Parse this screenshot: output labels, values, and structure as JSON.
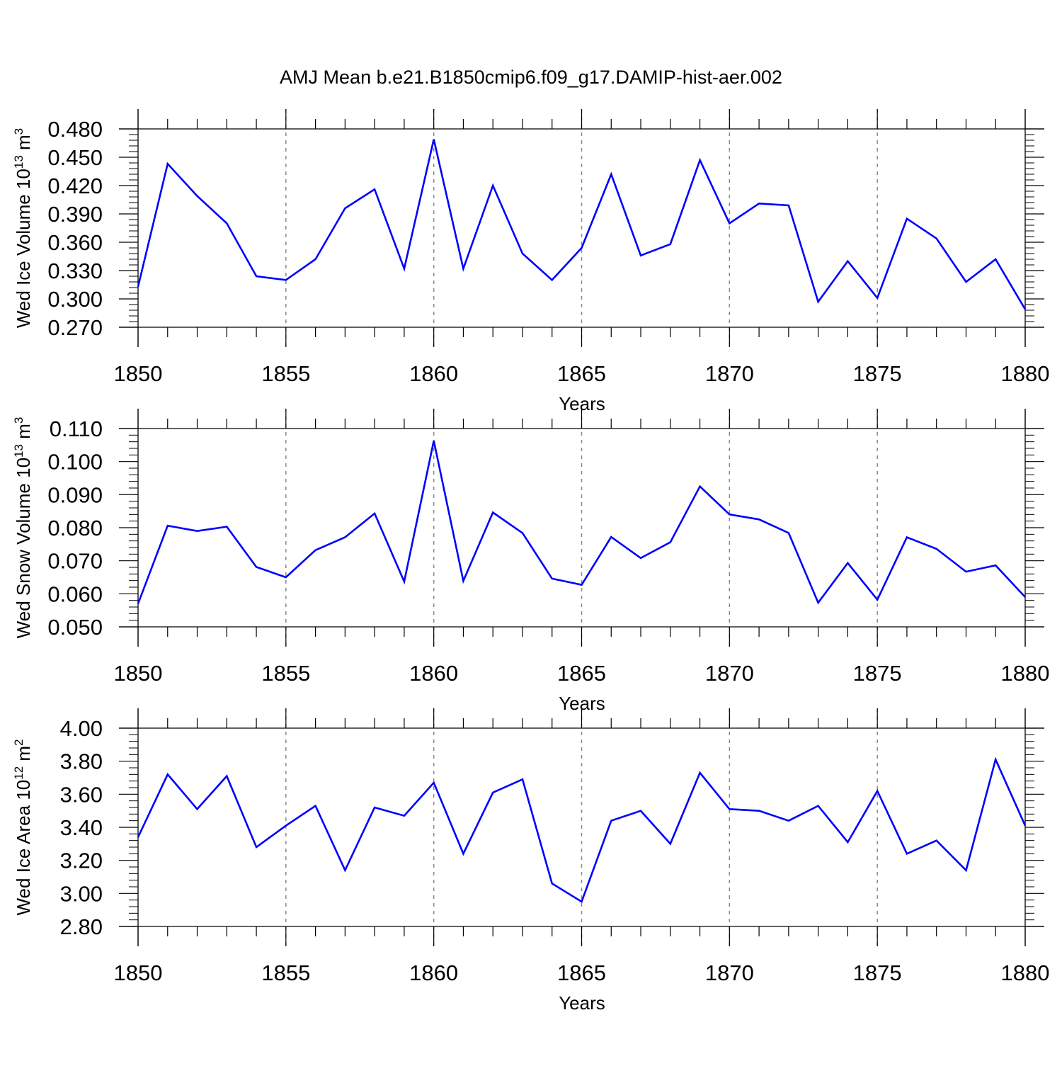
{
  "title": "AMJ Mean b.e21.B1850cmip6.f09_g17.DAMIP-hist-aer.002",
  "colors": {
    "line": "#0000ff",
    "axis": "#000000",
    "grid": "#888888"
  },
  "chart_data": [
    {
      "type": "line",
      "ylabel_main": "Wed Ice Volume 10",
      "ylabel_exp": "13",
      "ylabel_unit": " m",
      "ylabel_unit_exp": "3",
      "xlabel": "Years",
      "xlim": [
        1850,
        1880
      ],
      "ylim": [
        0.27,
        0.48
      ],
      "yticks": [
        0.27,
        0.3,
        0.33,
        0.36,
        0.39,
        0.42,
        0.45,
        0.48
      ],
      "ytick_labels": [
        "0.270",
        "0.300",
        "0.330",
        "0.360",
        "0.390",
        "0.420",
        "0.450",
        "0.480"
      ],
      "xticks": [
        1850,
        1855,
        1860,
        1865,
        1870,
        1875,
        1880
      ],
      "xtick_labels": [
        "1850",
        "1855",
        "1860",
        "1865",
        "1870",
        "1875",
        "1880"
      ],
      "x": [
        1850,
        1851,
        1852,
        1853,
        1854,
        1855,
        1856,
        1857,
        1858,
        1859,
        1860,
        1861,
        1862,
        1863,
        1864,
        1865,
        1866,
        1867,
        1868,
        1869,
        1870,
        1871,
        1872,
        1873,
        1874,
        1875,
        1876,
        1877,
        1878,
        1879,
        1880
      ],
      "values": [
        0.313,
        0.443,
        0.409,
        0.38,
        0.324,
        0.32,
        0.342,
        0.396,
        0.416,
        0.332,
        0.469,
        0.332,
        0.42,
        0.348,
        0.32,
        0.354,
        0.432,
        0.346,
        0.358,
        0.447,
        0.38,
        0.401,
        0.399,
        0.297,
        0.34,
        0.301,
        0.385,
        0.364,
        0.318,
        0.342,
        0.289
      ]
    },
    {
      "type": "line",
      "ylabel_main": "Wed Snow Volume 10",
      "ylabel_exp": "13",
      "ylabel_unit": " m",
      "ylabel_unit_exp": "3",
      "xlabel": "Years",
      "xlim": [
        1850,
        1880
      ],
      "ylim": [
        0.05,
        0.11
      ],
      "yticks": [
        0.05,
        0.06,
        0.07,
        0.08,
        0.09,
        0.1,
        0.11
      ],
      "ytick_labels": [
        "0.050",
        "0.060",
        "0.070",
        "0.080",
        "0.090",
        "0.100",
        "0.110"
      ],
      "xticks": [
        1850,
        1855,
        1860,
        1865,
        1870,
        1875,
        1880
      ],
      "xtick_labels": [
        "1850",
        "1855",
        "1860",
        "1865",
        "1870",
        "1875",
        "1880"
      ],
      "x": [
        1850,
        1851,
        1852,
        1853,
        1854,
        1855,
        1856,
        1857,
        1858,
        1859,
        1860,
        1861,
        1862,
        1863,
        1864,
        1865,
        1866,
        1867,
        1868,
        1869,
        1870,
        1871,
        1872,
        1873,
        1874,
        1875,
        1876,
        1877,
        1878,
        1879,
        1880
      ],
      "values": [
        0.057,
        0.0806,
        0.079,
        0.0803,
        0.0681,
        0.065,
        0.0732,
        0.0771,
        0.0843,
        0.0637,
        0.1063,
        0.0639,
        0.0846,
        0.0784,
        0.0646,
        0.0627,
        0.0772,
        0.0708,
        0.0756,
        0.0925,
        0.084,
        0.0825,
        0.0784,
        0.0573,
        0.0693,
        0.0582,
        0.0771,
        0.0736,
        0.0667,
        0.0686,
        0.059
      ]
    },
    {
      "type": "line",
      "ylabel_main": "Wed Ice Area 10",
      "ylabel_exp": "12",
      "ylabel_unit": " m",
      "ylabel_unit_exp": "2",
      "xlabel": "Years",
      "xlim": [
        1850,
        1880
      ],
      "ylim": [
        2.8,
        4.0
      ],
      "yticks": [
        2.8,
        3.0,
        3.2,
        3.4,
        3.6,
        3.8,
        4.0
      ],
      "ytick_labels": [
        "2.80",
        "3.00",
        "3.20",
        "3.40",
        "3.60",
        "3.80",
        "4.00"
      ],
      "xticks": [
        1850,
        1855,
        1860,
        1865,
        1870,
        1875,
        1880
      ],
      "xtick_labels": [
        "1850",
        "1855",
        "1860",
        "1865",
        "1870",
        "1875",
        "1880"
      ],
      "x": [
        1850,
        1851,
        1852,
        1853,
        1854,
        1855,
        1856,
        1857,
        1858,
        1859,
        1860,
        1861,
        1862,
        1863,
        1864,
        1865,
        1866,
        1867,
        1868,
        1869,
        1870,
        1871,
        1872,
        1873,
        1874,
        1875,
        1876,
        1877,
        1878,
        1879,
        1880
      ],
      "values": [
        3.34,
        3.72,
        3.51,
        3.71,
        3.28,
        3.41,
        3.53,
        3.14,
        3.52,
        3.47,
        3.67,
        3.24,
        3.61,
        3.69,
        3.06,
        2.95,
        3.44,
        3.5,
        3.3,
        3.73,
        3.51,
        3.5,
        3.44,
        3.53,
        3.31,
        3.62,
        3.24,
        3.32,
        3.14,
        3.81,
        3.41
      ]
    }
  ]
}
